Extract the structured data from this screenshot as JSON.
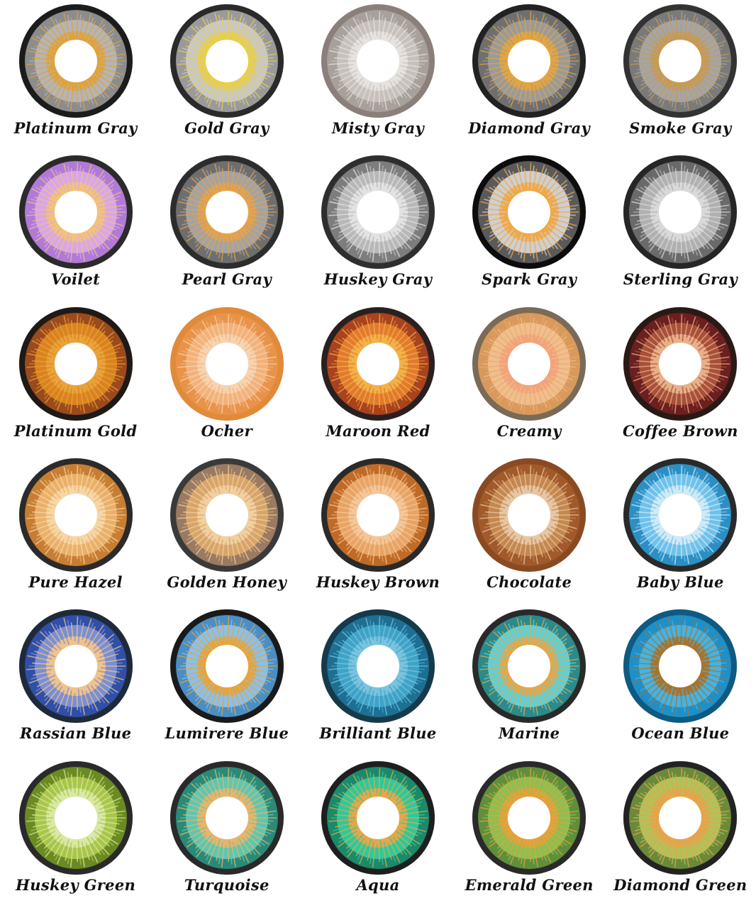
{
  "lenses": [
    {
      "name": "Platinum Gray",
      "limbal": "#1c1c1c",
      "outer": "#8c8c8c",
      "mid": "#b5b5b5",
      "inner": "#e0a23a"
    },
    {
      "name": "Gold Gray",
      "limbal": "#2a2a2a",
      "outer": "#9a9a9a",
      "mid": "#c8c8c8",
      "inner": "#e8cf4a"
    },
    {
      "name": "Misty Gray",
      "limbal": "#8a7f7a",
      "outer": "#a8a09b",
      "mid": "#c7c1bd",
      "inner": "#e6e2df"
    },
    {
      "name": "Diamond Gray",
      "limbal": "#222222",
      "outer": "#6f6f6f",
      "mid": "#9a9a9a",
      "inner": "#e4a53e"
    },
    {
      "name": "Smoke Gray",
      "limbal": "#333333",
      "outer": "#7a7a7a",
      "mid": "#a5a5a5",
      "inner": "#c89a52"
    },
    {
      "name": "Voilet",
      "limbal": "#2b2b2b",
      "outer": "#b07ad6",
      "mid": "#d8a6e8",
      "inner": "#f2c27a"
    },
    {
      "name": "Pearl Gray",
      "limbal": "#2d2d2d",
      "outer": "#6e6e6e",
      "mid": "#a3a3a3",
      "inner": "#e6a24a"
    },
    {
      "name": "Huskey Gray",
      "limbal": "#2f2f2f",
      "outer": "#7d7d7d",
      "mid": "#b8b8b8",
      "inner": "#e2e2e2"
    },
    {
      "name": "Spark Gray",
      "limbal": "#0d0d0d",
      "outer": "#5a5a5a",
      "mid": "#cfcfcf",
      "inner": "#f0a848"
    },
    {
      "name": "Sterling Gray",
      "limbal": "#262626",
      "outer": "#6a6a6a",
      "mid": "#b0b0b0",
      "inner": "#d9d9d9"
    },
    {
      "name": "Platinum Gold",
      "limbal": "#1f1a16",
      "outer": "#9a4a1c",
      "mid": "#d9831f",
      "inner": "#e9a33a"
    },
    {
      "name": "Ocher",
      "limbal": "#e08a3a",
      "outer": "#e9934a",
      "mid": "#f2b27a",
      "inner": "#f7d3b0"
    },
    {
      "name": "Maroon Red",
      "limbal": "#2a2020",
      "outer": "#a8421f",
      "mid": "#e27a2e",
      "inner": "#f2b248"
    },
    {
      "name": "Creamy",
      "limbal": "#7a6a58",
      "outer": "#d89a5a",
      "mid": "#eec08a",
      "inner": "#f3a37a"
    },
    {
      "name": "Coffee Brown",
      "limbal": "#2a1a16",
      "outer": "#6b1f1f",
      "mid": "#a8503a",
      "inner": "#e8b08a"
    },
    {
      "name": "Pure Hazel",
      "limbal": "#2b2b2b",
      "outer": "#c77e32",
      "mid": "#eab06a",
      "inner": "#f6d6a6"
    },
    {
      "name": "Golden Honey",
      "limbal": "#3a3a3a",
      "outer": "#9a7a62",
      "mid": "#d7a56a",
      "inner": "#f1d0a0"
    },
    {
      "name": "Huskey Brown",
      "limbal": "#2a2a2a",
      "outer": "#c06a28",
      "mid": "#e8a464",
      "inner": "#f3c79a"
    },
    {
      "name": "Chocolate",
      "limbal": "#8a4a22",
      "outer": "#a25a2a",
      "mid": "#c4874e",
      "inner": "#e7c6a4"
    },
    {
      "name": "Baby Blue",
      "limbal": "#2a2a2a",
      "outer": "#2c8fc4",
      "mid": "#6fc1ea",
      "inner": "#cfeaf6"
    },
    {
      "name": "Rassian Blue",
      "limbal": "#1f2a3a",
      "outer": "#2f4fa8",
      "mid": "#7a8fd2",
      "inner": "#f1c28a"
    },
    {
      "name": "Lumirere Blue",
      "limbal": "#1a1a1a",
      "outer": "#4a8ec4",
      "mid": "#8cc0e6",
      "inner": "#e7a43a"
    },
    {
      "name": "Brilliant Blue",
      "limbal": "#163a4a",
      "outer": "#1d6f93",
      "mid": "#3ea3c7",
      "inner": "#7ac3de"
    },
    {
      "name": "Marine",
      "limbal": "#2a2a2a",
      "outer": "#2b8a8a",
      "mid": "#5fd0d6",
      "inner": "#e3a74c"
    },
    {
      "name": "Ocean Blue",
      "limbal": "#0f5a82",
      "outer": "#1f8fc8",
      "mid": "#46b3e2",
      "inner": "#a7742e"
    },
    {
      "name": "Huskey Green",
      "limbal": "#2a2a2a",
      "outer": "#6a8a22",
      "mid": "#a8c64a",
      "inner": "#d9e8a4"
    },
    {
      "name": "Turquoise",
      "limbal": "#2a2a2a",
      "outer": "#2a8a78",
      "mid": "#5ec7b0",
      "inner": "#e7b56a"
    },
    {
      "name": "Aqua",
      "limbal": "#1f1f1f",
      "outer": "#1a8a6a",
      "mid": "#2fc99a",
      "inner": "#e2a84a"
    },
    {
      "name": "Emerald Green",
      "limbal": "#2a2a2a",
      "outer": "#5f8f3a",
      "mid": "#8dbf52",
      "inner": "#e6a13a"
    },
    {
      "name": "Diamond Green",
      "limbal": "#232323",
      "outer": "#6a8a3a",
      "mid": "#b1c25a",
      "inner": "#e8a34a"
    }
  ]
}
